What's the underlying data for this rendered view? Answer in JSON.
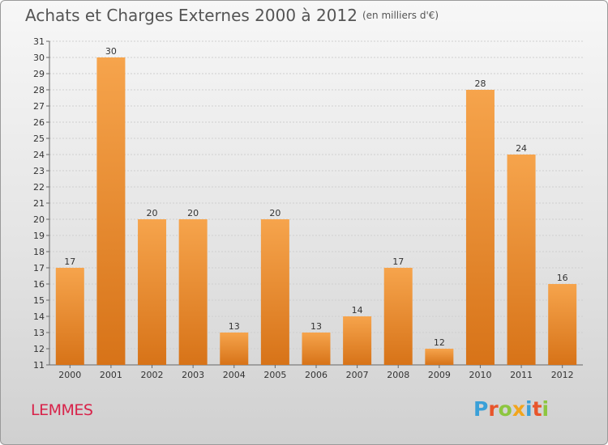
{
  "title": "Achats et Charges Externes 2000 à 2012",
  "subtitle": "(en milliers d'€)",
  "commune": "LEMMES",
  "logo_text": "Proxiti",
  "logo_colors": [
    "#3aa0d8",
    "#e8552b",
    "#8dc63f",
    "#f2a51c",
    "#3aa0d8",
    "#e8552b",
    "#8dc63f"
  ],
  "colors": {
    "bar_light": "#f6a44c",
    "bar_dark": "#d77318",
    "commune": "#d8234a"
  },
  "chart_data": {
    "type": "bar",
    "title": "Achats et Charges Externes 2000 à 2012",
    "subtitle": "(en milliers d'€)",
    "categories": [
      "2000",
      "2001",
      "2002",
      "2003",
      "2004",
      "2005",
      "2006",
      "2007",
      "2008",
      "2009",
      "2010",
      "2011",
      "2012"
    ],
    "values": [
      17,
      30,
      20,
      20,
      13,
      20,
      13,
      14,
      17,
      12,
      28,
      24,
      16
    ],
    "ylim": [
      11,
      31
    ],
    "yticks": [
      11,
      12,
      13,
      14,
      15,
      16,
      17,
      18,
      19,
      20,
      21,
      22,
      23,
      24,
      25,
      26,
      27,
      28,
      29,
      30,
      31
    ],
    "grid": true,
    "legend": "none"
  }
}
